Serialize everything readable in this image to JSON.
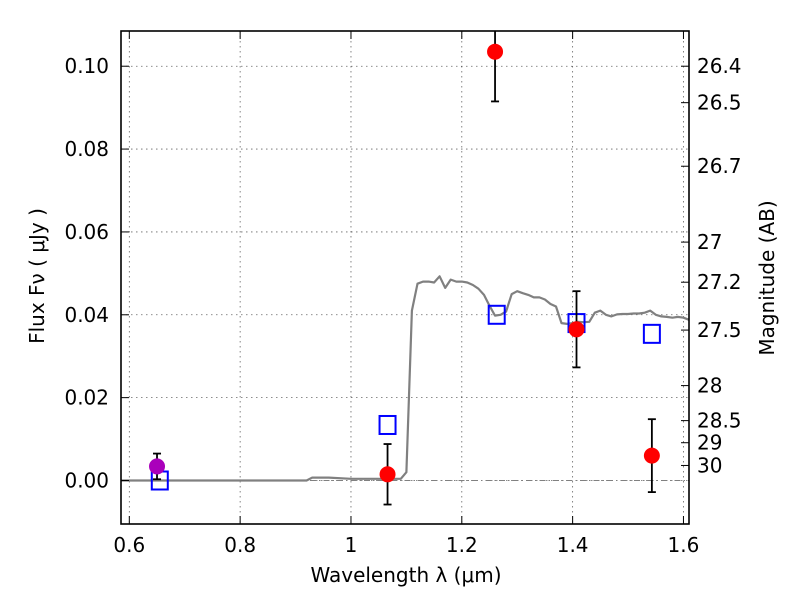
{
  "chart_data": {
    "type": "scatter",
    "title": "",
    "xlabel": "Wavelength  λ (μm)",
    "ylabel": "Flux  Fν  ( μJy )",
    "ylabel_right": "Magnitude (AB)",
    "xlim": [
      0.585,
      1.61
    ],
    "ylim": [
      -0.0105,
      0.1085
    ],
    "x_ticks": [
      0.6,
      0.8,
      1.0,
      1.2,
      1.4,
      1.6
    ],
    "x_tick_labels": [
      "0.6",
      "0.8",
      "1",
      "1.2",
      "1.4",
      "1.6"
    ],
    "y_ticks": [
      0.0,
      0.02,
      0.04,
      0.06,
      0.08,
      0.1
    ],
    "y_tick_labels": [
      "0.00",
      "0.02",
      "0.04",
      "0.06",
      "0.08",
      "0.10"
    ],
    "right_ticks": [
      {
        "mag": 26.4,
        "label": "26.4"
      },
      {
        "mag": 26.5,
        "label": "26.5"
      },
      {
        "mag": 26.7,
        "label": "26.7"
      },
      {
        "mag": 27.0,
        "label": "27"
      },
      {
        "mag": 27.2,
        "label": "27.2"
      },
      {
        "mag": 27.5,
        "label": "27.5"
      },
      {
        "mag": 28.0,
        "label": "28"
      },
      {
        "mag": 28.5,
        "label": "28.5"
      },
      {
        "mag": 29.0,
        "label": "29"
      },
      {
        "mag": 30.0,
        "label": "30"
      }
    ],
    "grid": true,
    "series": [
      {
        "name": "model spectrum",
        "kind": "line",
        "color": "#808080",
        "x": [
          0.585,
          0.92,
          0.93,
          0.96,
          1.0,
          1.05,
          1.09,
          1.1,
          1.11,
          1.12,
          1.13,
          1.14,
          1.15,
          1.16,
          1.17,
          1.18,
          1.19,
          1.2,
          1.21,
          1.22,
          1.23,
          1.24,
          1.25,
          1.26,
          1.27,
          1.28,
          1.29,
          1.3,
          1.31,
          1.32,
          1.33,
          1.34,
          1.35,
          1.36,
          1.37,
          1.38,
          1.39,
          1.4,
          1.41,
          1.42,
          1.43,
          1.44,
          1.45,
          1.46,
          1.47,
          1.48,
          1.49,
          1.5,
          1.51,
          1.52,
          1.53,
          1.54,
          1.55,
          1.56,
          1.57,
          1.58,
          1.59,
          1.6,
          1.61
        ],
        "y": [
          0.0,
          0.0,
          0.0007,
          0.0007,
          0.0004,
          0.0004,
          0.0004,
          0.002,
          0.041,
          0.0475,
          0.048,
          0.048,
          0.0478,
          0.0493,
          0.0465,
          0.0485,
          0.048,
          0.048,
          0.0478,
          0.0472,
          0.0463,
          0.0448,
          0.0422,
          0.0398,
          0.04,
          0.0408,
          0.045,
          0.0457,
          0.0452,
          0.0448,
          0.0442,
          0.0442,
          0.0437,
          0.0426,
          0.042,
          0.038,
          0.0378,
          0.038,
          0.0383,
          0.0382,
          0.0383,
          0.0405,
          0.041,
          0.04,
          0.0396,
          0.0401,
          0.0402,
          0.0402,
          0.0403,
          0.0403,
          0.0405,
          0.041,
          0.04,
          0.0396,
          0.0395,
          0.0393,
          0.0395,
          0.0393,
          0.0388
        ]
      },
      {
        "name": "model band fluxes",
        "kind": "square",
        "color": "#0000ff",
        "x": [
          0.655,
          1.066,
          1.263,
          1.407,
          1.543
        ],
        "y": [
          0.0,
          0.0134,
          0.04,
          0.038,
          0.0354
        ]
      },
      {
        "name": "observed (red)",
        "kind": "point",
        "color": "#ff0000",
        "x": [
          1.066,
          1.26,
          1.407,
          1.543
        ],
        "y": [
          0.0015,
          0.1035,
          0.0365,
          0.006
        ],
        "yerr": [
          0.0073,
          0.012,
          0.0092,
          0.0088
        ]
      },
      {
        "name": "observed (purple)",
        "kind": "point",
        "color": "#aa00bb",
        "x": [
          0.65
        ],
        "y": [
          0.0034
        ],
        "yerr": [
          0.0031
        ]
      }
    ],
    "zero_line": {
      "y": 0.0,
      "style": "dashdot",
      "color": "#808080"
    }
  }
}
